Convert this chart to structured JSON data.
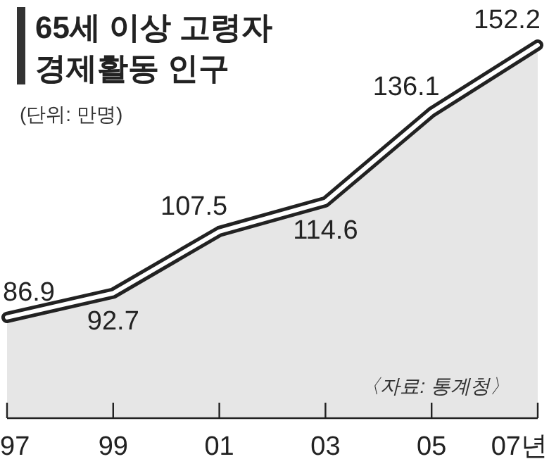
{
  "chart_data": {
    "type": "area",
    "title": "65세 이상 고령자 경제활동 인구",
    "subtitle": "(단위: 만명)",
    "categories": [
      "97",
      "99",
      "01",
      "03",
      "05",
      "07년"
    ],
    "values": [
      86.9,
      92.7,
      107.5,
      114.6,
      136.1,
      152.2
    ],
    "color": "#e6e6e6",
    "data_labels": true,
    "annotations": [
      "〈자료: 통계청〉"
    ]
  }
}
